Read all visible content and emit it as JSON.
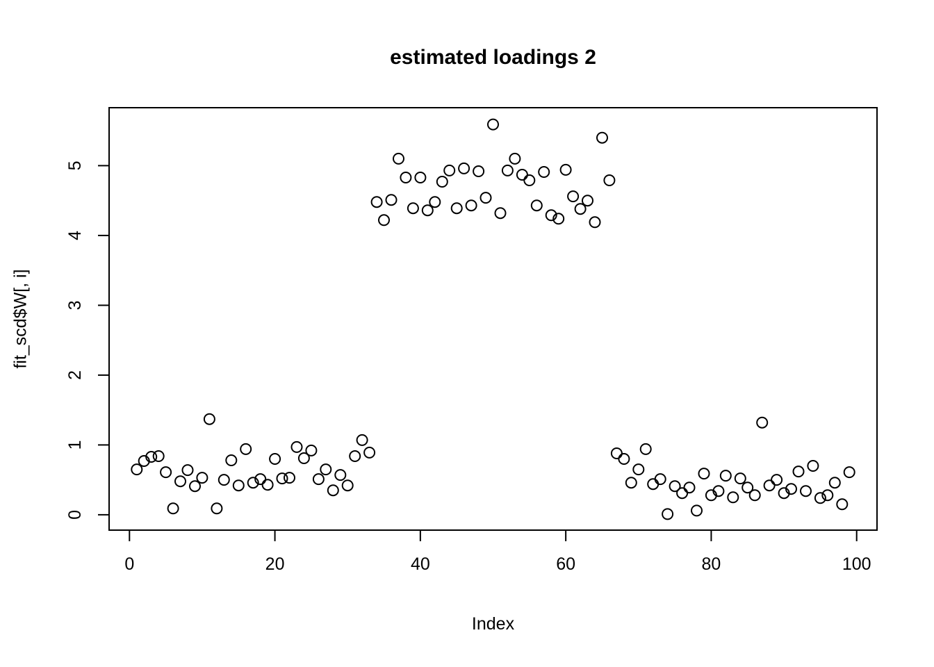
{
  "chart_data": {
    "type": "scatter",
    "title": "estimated loadings 2",
    "xlabel": "Index",
    "ylabel": "fit_scd$W[, i]",
    "marker": "open-circle",
    "point_color": "#000000",
    "background_color": "#FFFFFF",
    "grid": false,
    "legend": "none",
    "xticks": [
      0,
      20,
      40,
      60,
      80,
      100
    ],
    "yticks": [
      0,
      1,
      2,
      3,
      4,
      5
    ],
    "xlim": [
      -2.8,
      102.8
    ],
    "ylim": [
      -0.22,
      5.83
    ],
    "x": [
      1,
      2,
      3,
      4,
      5,
      6,
      7,
      8,
      9,
      10,
      11,
      12,
      13,
      14,
      15,
      16,
      17,
      18,
      19,
      20,
      21,
      22,
      23,
      24,
      25,
      26,
      27,
      28,
      29,
      30,
      31,
      32,
      33,
      34,
      35,
      36,
      37,
      38,
      39,
      40,
      41,
      42,
      43,
      44,
      45,
      46,
      47,
      48,
      49,
      50,
      51,
      52,
      53,
      54,
      55,
      56,
      57,
      58,
      59,
      60,
      61,
      62,
      63,
      64,
      65,
      66,
      67,
      68,
      69,
      70,
      71,
      72,
      73,
      74,
      75,
      76,
      77,
      78,
      79,
      80,
      81,
      82,
      83,
      84,
      85,
      86,
      87,
      88,
      89,
      90,
      91,
      92,
      93,
      94,
      95,
      96,
      97,
      98,
      99
    ],
    "y": [
      0.65,
      0.77,
      0.83,
      0.84,
      0.61,
      0.09,
      0.48,
      0.64,
      0.41,
      0.53,
      1.37,
      0.09,
      0.5,
      0.78,
      0.42,
      0.94,
      0.46,
      0.51,
      0.43,
      0.8,
      0.52,
      0.53,
      0.97,
      0.81,
      0.92,
      0.51,
      0.65,
      0.35,
      0.57,
      0.42,
      0.84,
      1.07,
      0.89,
      4.48,
      4.22,
      4.51,
      5.1,
      4.83,
      4.39,
      4.83,
      4.36,
      4.48,
      4.77,
      4.93,
      4.39,
      4.96,
      4.43,
      4.92,
      4.54,
      5.59,
      4.32,
      4.93,
      5.1,
      4.87,
      4.79,
      4.43,
      4.91,
      4.29,
      4.24,
      4.94,
      4.56,
      4.38,
      4.5,
      4.19,
      5.4,
      4.79,
      0.88,
      0.8,
      0.46,
      0.65,
      0.94,
      0.44,
      0.51,
      0.01,
      0.41,
      0.31,
      0.39,
      0.06,
      0.59,
      0.28,
      0.34,
      0.56,
      0.25,
      0.52,
      0.39,
      0.28,
      1.32,
      0.42,
      0.5,
      0.31,
      0.37,
      0.62,
      0.34,
      0.7,
      0.24,
      0.28,
      0.46,
      0.15,
      0.61
    ]
  }
}
